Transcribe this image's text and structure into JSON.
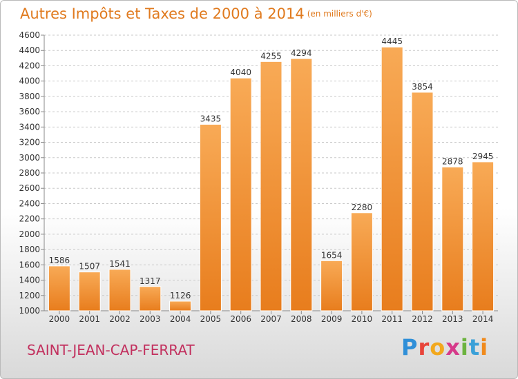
{
  "title": "Autres Impôts et Taxes de 2000 à 2014",
  "subtitle": "(en milliers d'€)",
  "location": "SAINT-JEAN-CAP-FERRAT",
  "logo": {
    "letters": [
      "P",
      "r",
      "o",
      "x",
      "i",
      "t",
      "i"
    ],
    "colors": [
      "#2f8fd8",
      "#e8443a",
      "#f2a81d",
      "#d63a8a",
      "#6cb33f",
      "#3aa0d8",
      "#f08a1c"
    ]
  },
  "colors": {
    "bar_light": "#f8aa56",
    "bar_dark": "#e87d1d",
    "title": "#e07a1e",
    "location": "#c2305e"
  },
  "chart_data": {
    "type": "bar",
    "categories": [
      "2000",
      "2001",
      "2002",
      "2003",
      "2004",
      "2005",
      "2006",
      "2007",
      "2008",
      "2009",
      "2010",
      "2011",
      "2012",
      "2013",
      "2014"
    ],
    "values": [
      1586,
      1507,
      1541,
      1317,
      1126,
      3435,
      4040,
      4255,
      4294,
      1654,
      2280,
      4445,
      3854,
      2878,
      2945
    ],
    "ylim": [
      1000,
      4600
    ],
    "yticks": [
      1000,
      1200,
      1400,
      1600,
      1800,
      2000,
      2200,
      2400,
      2600,
      2800,
      3000,
      3200,
      3400,
      3600,
      3800,
      4000,
      4200,
      4400,
      4600
    ],
    "grid": true,
    "xlabel": "",
    "ylabel": ""
  }
}
